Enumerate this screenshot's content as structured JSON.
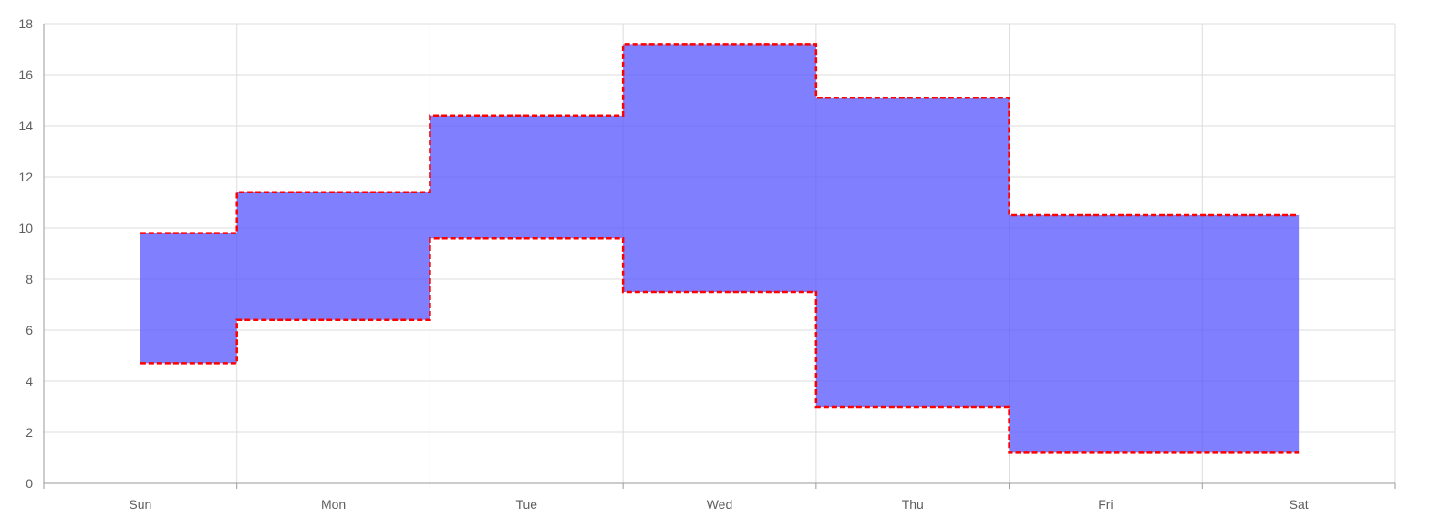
{
  "chart_data": {
    "type": "area",
    "subtype": "step-range",
    "categories": [
      "Sun",
      "Mon",
      "Tue",
      "Wed",
      "Thu",
      "Fri",
      "Sat"
    ],
    "series": [
      {
        "values_low": [
          4.7,
          6.4,
          9.6,
          7.5,
          3.0,
          1.2,
          1.2
        ],
        "values_high": [
          9.8,
          11.4,
          14.4,
          17.2,
          15.1,
          10.5,
          10.5
        ]
      }
    ],
    "ylim": [
      0,
      18
    ],
    "y_ticks": [
      "0",
      "2",
      "4",
      "6",
      "8",
      "10",
      "12",
      "14",
      "16",
      "18"
    ],
    "grid": true,
    "legend": "none",
    "colors": {
      "fill": "#5555ff",
      "fill_opacity": 0.75,
      "border": "#ff0000",
      "grid": "#dcdcdc",
      "axis": "#9a9a9a",
      "tick_text": "#5f5f5f"
    }
  }
}
